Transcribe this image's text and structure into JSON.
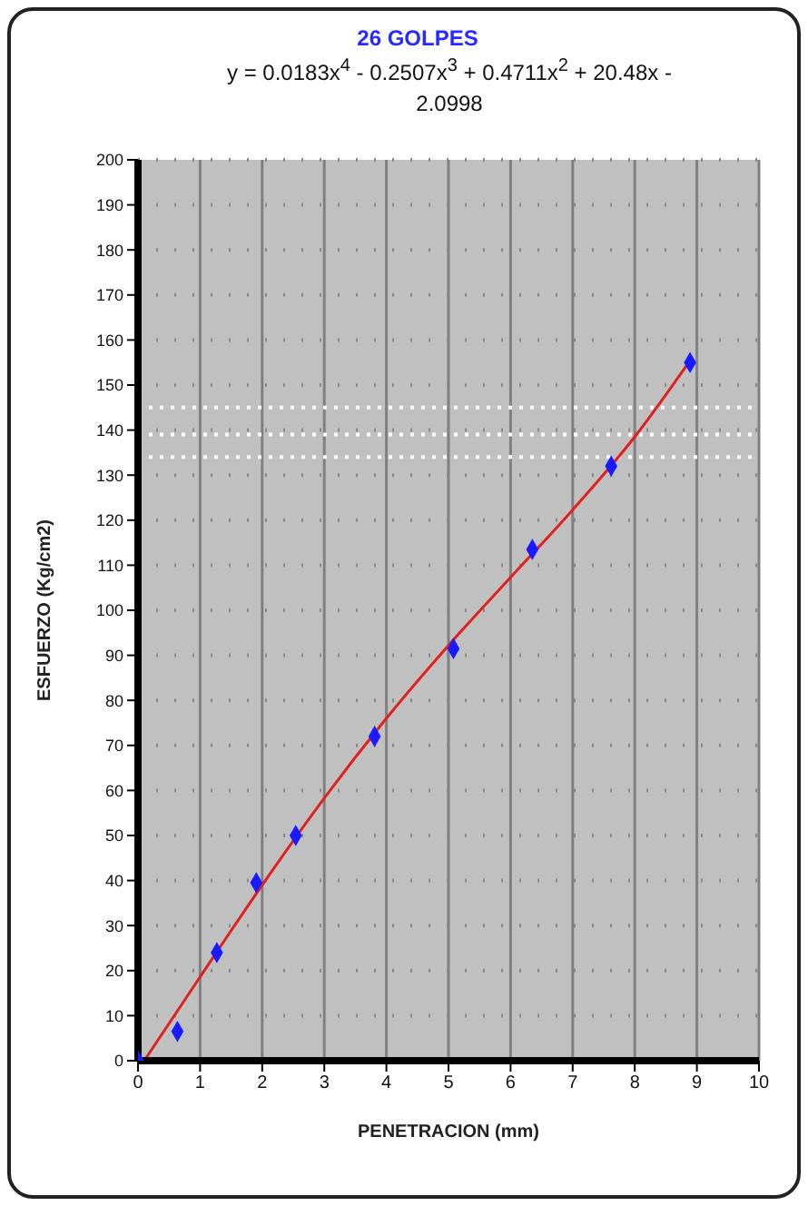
{
  "chart_data": {
    "type": "scatter",
    "title": "26 GOLPES",
    "subtitle": "y = 0.0183x$^{4}$ - 0.2507x$^{3}$ + 0.4711x$^{2}$ + 20.48x - 2.0998",
    "xlabel": "PENETRACION (mm)",
    "ylabel": "ESFUERZO (Kg/cm2)",
    "series": [
      {
        "color": "#1a1aff",
        "marker": "diamond",
        "x": [
          0,
          0.635,
          1.27,
          1.905,
          2.54,
          3.81,
          5.08,
          6.35,
          7.62,
          8.89
        ],
        "values": [
          0,
          6.5,
          24,
          39.5,
          50,
          72,
          91.5,
          113.5,
          132,
          155
        ]
      },
      {
        "type": "line",
        "color": "#e02020",
        "marker": "none",
        "x": [
          0.1,
          1,
          2,
          3,
          4,
          5,
          6,
          7,
          8,
          8.89
        ],
        "values": [
          0,
          18.6,
          39,
          58.3,
          76,
          92.2,
          107.3,
          122.3,
          138.5,
          155.4
        ]
      }
    ],
    "xlim": [
      0,
      10
    ],
    "xticks": [
      0,
      1,
      2,
      3,
      4,
      5,
      6,
      7,
      8,
      9,
      10
    ],
    "ylim": [
      0,
      200
    ],
    "yticks": [
      0,
      10,
      20,
      30,
      40,
      50,
      60,
      70,
      80,
      90,
      100,
      110,
      120,
      130,
      140,
      150,
      160,
      170,
      180,
      190,
      200
    ],
    "grid": true,
    "ref_lines": [
      {
        "axis": "y",
        "value": 145,
        "color": "#ffffff",
        "line_style": "dotted"
      },
      {
        "axis": "y",
        "value": 139,
        "color": "#ffffff",
        "line_style": "dotted"
      },
      {
        "axis": "y",
        "value": 134,
        "color": "#ffffff",
        "line_style": "dotted"
      }
    ]
  }
}
